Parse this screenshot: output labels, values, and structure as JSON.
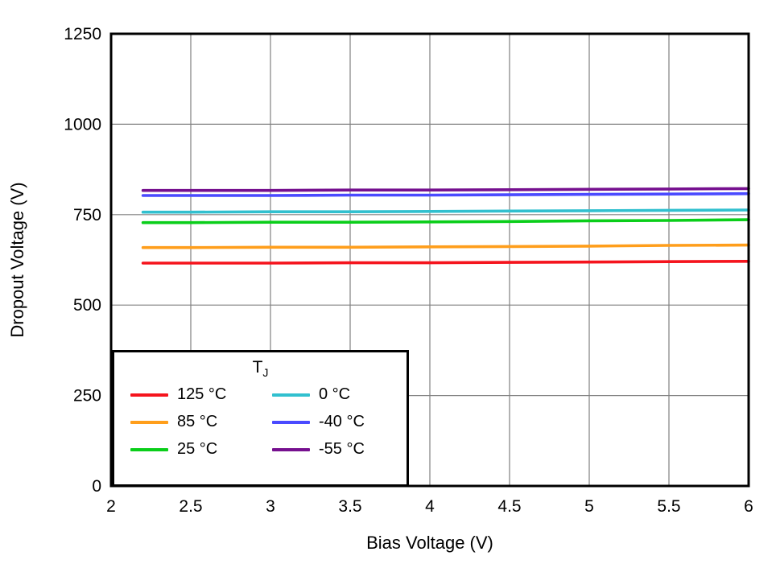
{
  "chart_data": {
    "type": "line",
    "title": "",
    "xlabel": "Bias Voltage (V)",
    "ylabel": "Dropout Voltage (V)",
    "xlim": [
      2,
      6
    ],
    "ylim": [
      0,
      1250
    ],
    "xticks": [
      2,
      2.5,
      3,
      3.5,
      4,
      4.5,
      5,
      5.5,
      6
    ],
    "yticks": [
      0,
      250,
      500,
      750,
      1000,
      1250
    ],
    "grid": true,
    "legend_position": "lower left",
    "legend_title_main": "T",
    "legend_title_sub": "J",
    "x": [
      2.2,
      2.5,
      3,
      3.5,
      4,
      4.5,
      5,
      5.5,
      6
    ],
    "series": [
      {
        "name": "125 °C",
        "color": "#f5141d",
        "values": [
          616,
          616,
          616,
          617,
          617,
          618,
          619,
          620,
          621
        ]
      },
      {
        "name": "85 °C",
        "color": "#ff9e1b",
        "values": [
          659,
          659,
          660,
          660,
          661,
          662,
          663,
          665,
          666
        ]
      },
      {
        "name": "25 °C",
        "color": "#0ace1a",
        "values": [
          728,
          728,
          729,
          729,
          730,
          731,
          733,
          734,
          736
        ]
      },
      {
        "name": "0 °C",
        "color": "#31c0cf",
        "values": [
          757,
          757,
          758,
          758,
          759,
          760,
          761,
          762,
          763
        ]
      },
      {
        "name": "-40 °C",
        "color": "#4a4aff",
        "values": [
          803,
          803,
          803,
          804,
          804,
          805,
          806,
          807,
          808
        ]
      },
      {
        "name": "-55 °C",
        "color": "#76108f",
        "values": [
          817,
          817,
          817,
          818,
          818,
          819,
          820,
          821,
          822
        ]
      }
    ]
  }
}
